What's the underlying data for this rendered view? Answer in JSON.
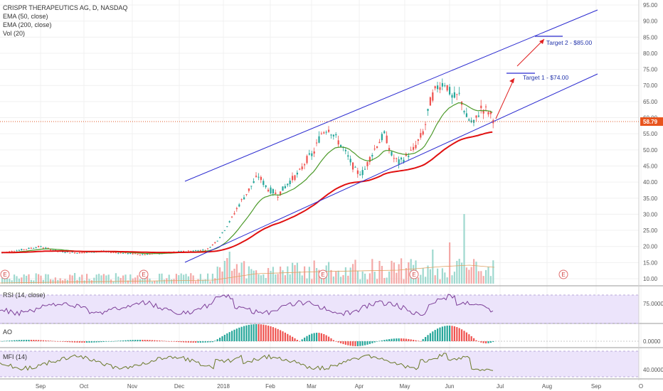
{
  "header": {
    "symbol": "CRISPR THERAPEUTICS AG, D, NASDAQ",
    "indicators": [
      "EMA (50, close)",
      "EMA (200, close)",
      "Vol (20)"
    ]
  },
  "panes": {
    "rsi_label": "RSI (14, close)",
    "ao_label": "AO",
    "mfi_label": "MFI (14)"
  },
  "annotations": {
    "target1": "Target 1 - $74.00",
    "target2": "Target 2 - $85.00",
    "earnings_marker": "E"
  },
  "last_price": "58.79",
  "colors": {
    "up": "#26a69a",
    "down": "#ef5350",
    "channel": "#2b2bd0",
    "ema50": "#4c9a2a",
    "ema200": "#e01010",
    "price_line": "#e05a2a",
    "osc_bg": "#ece4fb",
    "osc_line": "#7d3f98"
  },
  "chart_data": {
    "type": "candlestick",
    "price_axis": [
      "95.00",
      "90.00",
      "85.00",
      "80.00",
      "75.00",
      "70.00",
      "65.00",
      "60.00",
      "55.00",
      "50.00",
      "45.00",
      "40.00",
      "35.00",
      "30.00",
      "25.00",
      "20.00",
      "15.00",
      "10.00"
    ],
    "price_range": [
      7,
      96
    ],
    "x_labels": [
      "Sep",
      "Oct",
      "Nov",
      "Dec",
      "2018",
      "Feb",
      "Mar",
      "Apr",
      "May",
      "Jun",
      "Jul",
      "Aug",
      "Sep",
      "O"
    ],
    "rsi_axis": [
      "75.0000"
    ],
    "ao_axis": [
      "0.0000"
    ],
    "mfi_axis": [
      "40.0000"
    ],
    "targets": [
      74,
      85
    ],
    "channel_upper": [
      [
        {
          "date": "Dec 2017",
          "price": 40
        }
      ],
      [
        {
          "date": "Sep 2018",
          "price": 93
        }
      ]
    ],
    "channel_lower": [
      [
        {
          "date": "Dec 2017",
          "price": 15
        }
      ],
      [
        {
          "date": "Sep 2018",
          "price": 73
        }
      ]
    ]
  }
}
